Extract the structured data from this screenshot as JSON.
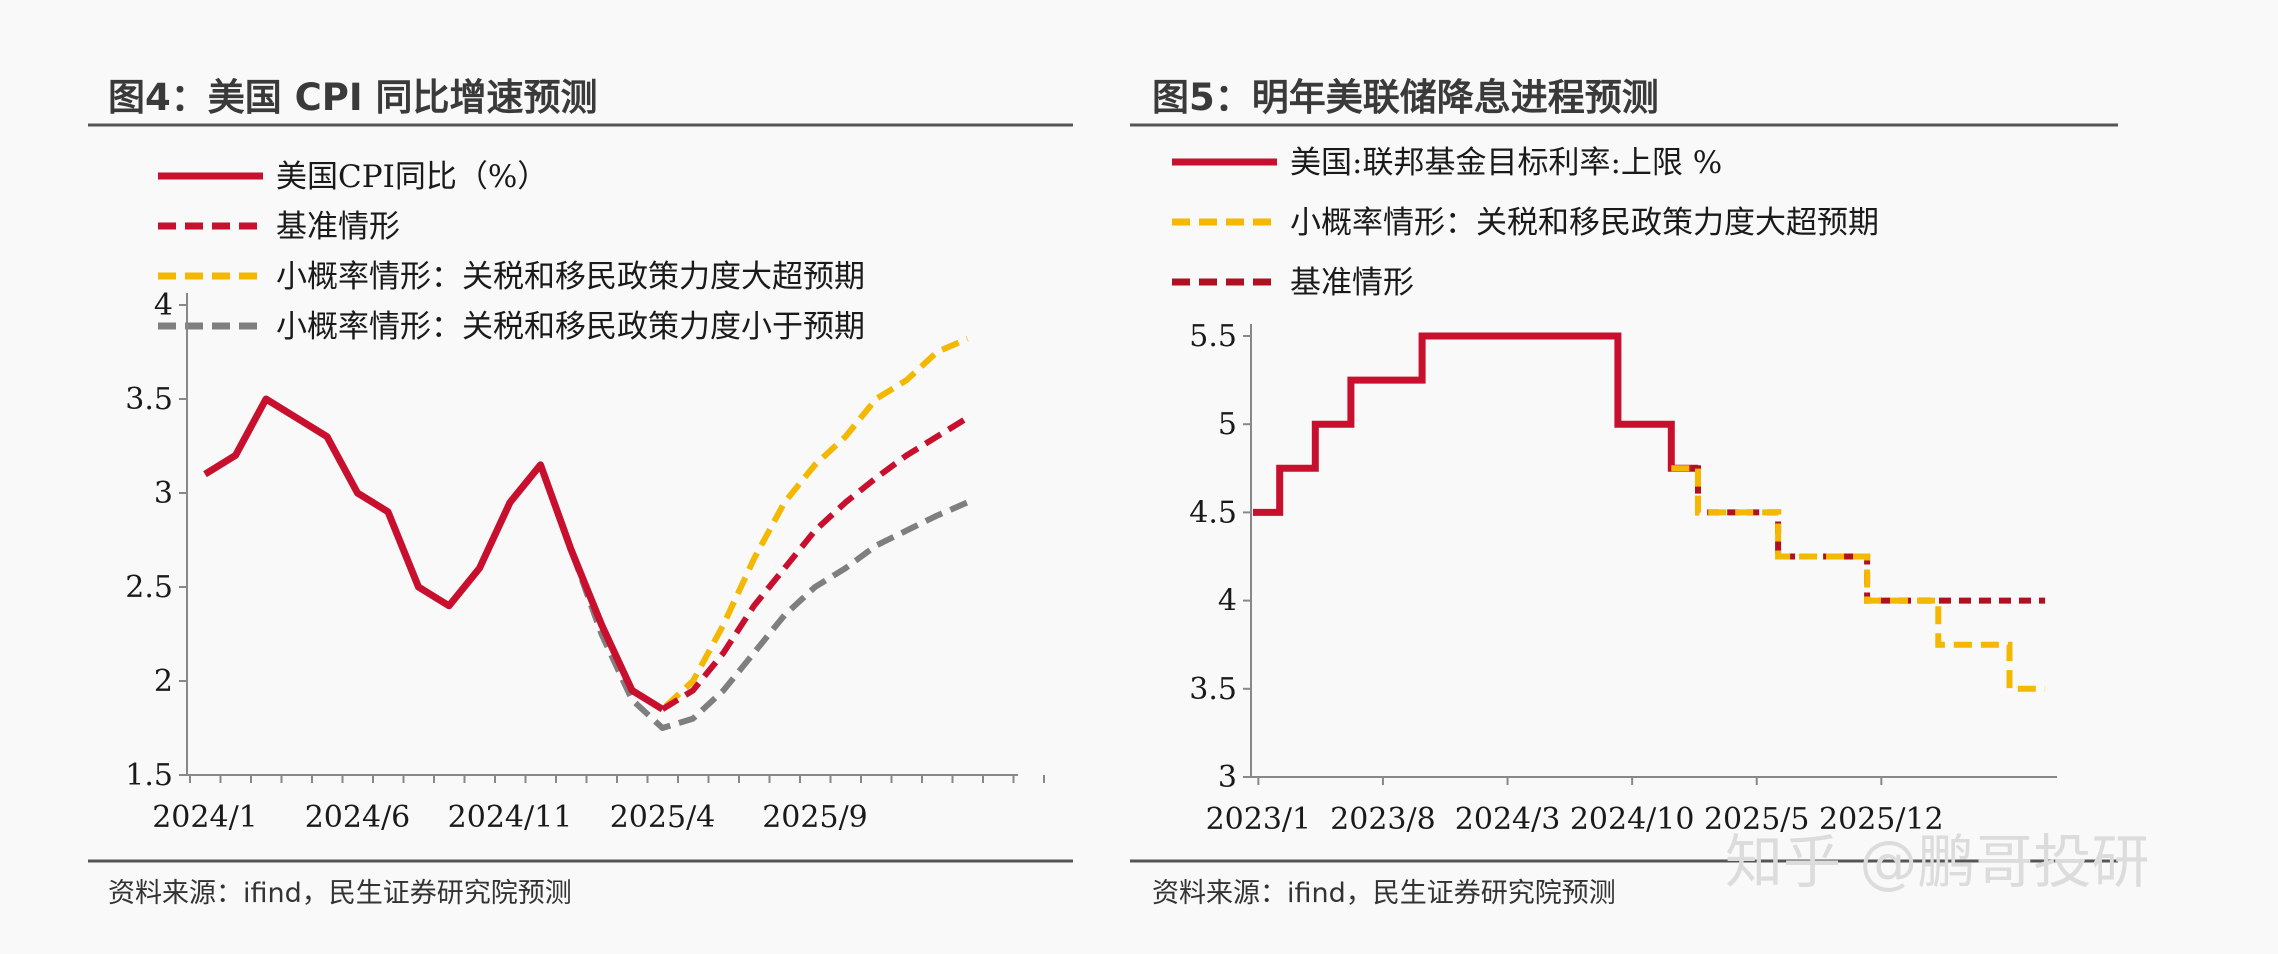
{
  "figures": [
    {
      "title": "图4：美国 CPI 同比增速预测",
      "source": "资料来源：ifind，民生证券研究院预测"
    },
    {
      "title": "图5：明年美联储降息进程预测",
      "source": "资料来源：ifind，民生证券研究院预测"
    }
  ],
  "watermark": "知乎 @鹏哥投研",
  "colors": {
    "red": "#c8102e",
    "darkred": "#b01020",
    "yellow": "#f5b800",
    "gray": "#7f7f7f",
    "axis": "#888888",
    "rule": "#555555"
  },
  "chart_data": [
    {
      "type": "line",
      "title": "图4：美国 CPI 同比增速预测",
      "x_start": "2024/1",
      "x_tick_labels": [
        "2024/1",
        "2024/6",
        "2024/11",
        "2025/4",
        "2025/9"
      ],
      "y_tick_labels": [
        "1.5",
        "2",
        "2.5",
        "3",
        "3.5",
        "4"
      ],
      "ylim": [
        1.5,
        4
      ],
      "legend_position": "top-left",
      "series": [
        {
          "name": "美国CPI同比（%）",
          "style": "solid",
          "color": "#c8102e",
          "values": [
            3.1,
            3.2,
            3.5,
            3.4,
            3.3,
            3.0,
            2.9,
            2.5,
            2.4,
            2.6,
            2.95,
            3.15,
            2.7,
            2.3,
            1.95,
            1.85
          ]
        },
        {
          "name": "基准情形",
          "style": "dash",
          "color": "#c8102e",
          "x": [
            15,
            16,
            17,
            18,
            19,
            20,
            21,
            22,
            23,
            24,
            25,
            26
          ],
          "values": [
            1.85,
            1.95,
            2.15,
            2.4,
            2.6,
            2.8,
            2.95,
            3.08,
            3.2,
            3.3,
            3.4,
            null
          ]
        },
        {
          "name": "小概率情形：关税和移民政策力度大超预期",
          "style": "dash",
          "color": "#f5b800",
          "x": [
            9,
            10,
            11,
            12,
            13,
            14,
            15,
            16,
            17,
            18,
            19,
            20,
            21,
            22,
            23,
            24,
            25
          ],
          "values": [
            2.6,
            2.95,
            3.15,
            2.7,
            2.3,
            1.95,
            1.85,
            2.0,
            2.3,
            2.65,
            2.95,
            3.15,
            3.3,
            3.5,
            3.6,
            3.75,
            3.82
          ]
        },
        {
          "name": "小概率情形：关税和移民政策力度小于预期",
          "style": "dash",
          "color": "#7f7f7f",
          "x": [
            9,
            10,
            11,
            12,
            13,
            14,
            15,
            16,
            17,
            18,
            19,
            20,
            21,
            22,
            23,
            24,
            25
          ],
          "values": [
            2.6,
            2.95,
            3.15,
            2.7,
            2.25,
            1.9,
            1.75,
            1.8,
            1.95,
            2.15,
            2.35,
            2.5,
            2.6,
            2.72,
            2.8,
            2.88,
            2.95
          ]
        }
      ]
    },
    {
      "type": "line",
      "title": "图5：明年美联储降息进程预测",
      "x_tick_labels": [
        "2023/1",
        "2023/8",
        "2024/3",
        "2024/10",
        "2025/5",
        "2025/12"
      ],
      "y_tick_labels": [
        "3",
        "3.5",
        "4",
        "4.5",
        "5",
        "5.5"
      ],
      "ylim": [
        3,
        5.5
      ],
      "legend_position": "top-left",
      "series": [
        {
          "name": "美国:联邦基金目标利率:上限 %",
          "style": "step-solid",
          "color": "#c8102e",
          "steps": [
            [
              0,
              4.5
            ],
            [
              1.5,
              4.75
            ],
            [
              3.5,
              5.0
            ],
            [
              5.5,
              5.25
            ],
            [
              9.5,
              5.5
            ],
            [
              20.5,
              5.0
            ],
            [
              23.5,
              4.75
            ],
            [
              25,
              4.75
            ]
          ]
        },
        {
          "name": "小概率情形：关税和移民政策力度大超预期",
          "style": "step-dash",
          "color": "#f5b800",
          "steps": [
            [
              23.5,
              4.75
            ],
            [
              25,
              4.5
            ],
            [
              29.5,
              4.25
            ],
            [
              34.5,
              4.0
            ],
            [
              38.5,
              3.75
            ],
            [
              42.5,
              3.5
            ],
            [
              44.5,
              3.5
            ]
          ]
        },
        {
          "name": "基准情形",
          "style": "step-dash",
          "color": "#b01020",
          "steps": [
            [
              23.5,
              4.75
            ],
            [
              25,
              4.5
            ],
            [
              29.5,
              4.25
            ],
            [
              34.5,
              4.0
            ],
            [
              44.5,
              4.0
            ]
          ]
        }
      ]
    }
  ]
}
